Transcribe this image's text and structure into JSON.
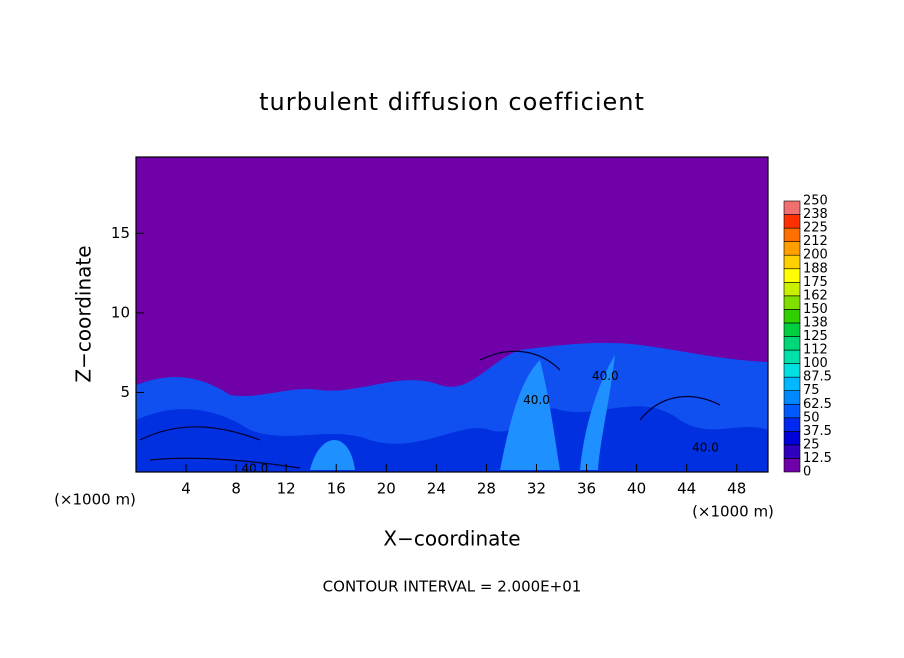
{
  "chart_data": {
    "type": "contour",
    "title": "turbulent diffusion coefficient",
    "x_label": "X−coordinate",
    "y_label": "Z−coordinate",
    "x_unit_left": "(×1000 m)",
    "x_unit_right": "(×1000 m)",
    "footer": "CONTOUR INTERVAL = 2.000E+01",
    "xlim": [
      0,
      50.5
    ],
    "ylim": [
      0,
      19.8
    ],
    "xticks": [
      4,
      8,
      12,
      16,
      20,
      24,
      28,
      32,
      36,
      40,
      44,
      48
    ],
    "yticks": [
      5,
      10,
      15
    ],
    "contour_labels": [
      {
        "text": "40.0",
        "x": 9.5,
        "y": 0.2
      },
      {
        "text": "40.0",
        "x": 32,
        "y": 4.5
      },
      {
        "text": "40.0",
        "x": 37.5,
        "y": 6
      },
      {
        "text": "40.0",
        "x": 45.5,
        "y": 1.5
      }
    ],
    "colorbar": {
      "levels": [
        0,
        12.5,
        25,
        37.5,
        50,
        62.5,
        75,
        87.5,
        100,
        112,
        125,
        138,
        150,
        162,
        175,
        188,
        200,
        212,
        225,
        238,
        250
      ],
      "colors": [
        "#7000a8",
        "#3000c0",
        "#0000d8",
        "#0028f0",
        "#0058ff",
        "#0088ff",
        "#00b8ff",
        "#00e0e0",
        "#00e0a8",
        "#00d878",
        "#00d040",
        "#30d000",
        "#80e000",
        "#c8f000",
        "#ffff00",
        "#ffd000",
        "#ffa000",
        "#ff7000",
        "#ff3000",
        "#f07070"
      ]
    }
  }
}
